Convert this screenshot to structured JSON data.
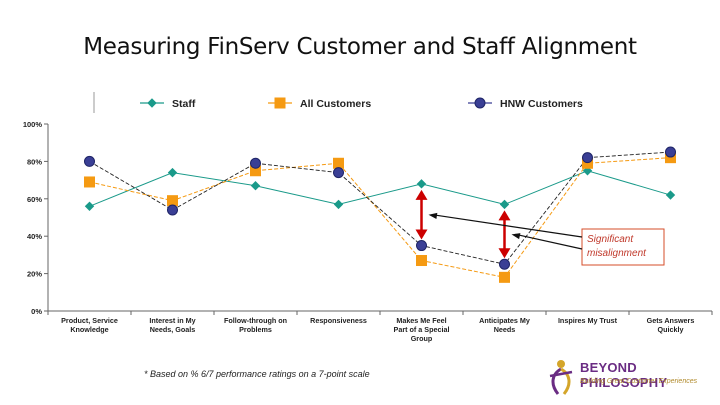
{
  "slide": {
    "title": "Measuring FinServ Customer and Staff Alignment",
    "footnote": "* Based on % 6/7 performance ratings on a 7-point scale",
    "logo_name": "BEYOND PHILOSOPHY",
    "logo_tagline": "Building Great Customer Experiences",
    "callout_text": "Significant misalignment"
  },
  "colors": {
    "staff": "#1a9a8a",
    "all_customers": "#f59a12",
    "hnw_customers": "#3a3f95",
    "arrow": "#cc0000",
    "callout_border": "#d64d2a",
    "callout_text": "#c0392b"
  },
  "chart_data": {
    "type": "line",
    "categories": [
      [
        "Product, Service",
        "Knowledge"
      ],
      [
        "Interest in My",
        "Needs, Goals"
      ],
      [
        "Follow-through on",
        "Problems"
      ],
      [
        "Responsiveness"
      ],
      [
        "Makes Me Feel",
        "Part of a Special",
        "Group"
      ],
      [
        "Anticipates My",
        "Needs"
      ],
      [
        "Inspires My Trust"
      ],
      [
        "Gets Answers",
        "Quickly"
      ]
    ],
    "ylim": [
      0,
      100
    ],
    "yticks": [
      "0%",
      "20%",
      "40%",
      "60%",
      "80%",
      "100%"
    ],
    "legend_position": "top",
    "series": [
      {
        "name": "Staff",
        "marker": "diamond",
        "dash": "solid",
        "values": [
          56,
          74,
          67,
          57,
          68,
          57,
          75,
          62
        ]
      },
      {
        "name": "All Customers",
        "marker": "square",
        "dash": "dashed",
        "values": [
          69,
          59,
          75,
          79,
          27,
          18,
          79,
          82
        ]
      },
      {
        "name": "HNW  Customers",
        "marker": "circle",
        "dash": "dashed",
        "values": [
          80,
          54,
          79,
          74,
          35,
          25,
          82,
          85
        ]
      }
    ],
    "annotations": [
      {
        "text": "Significant misalignment",
        "arrows_at_categories": [
          4,
          5
        ]
      }
    ]
  }
}
